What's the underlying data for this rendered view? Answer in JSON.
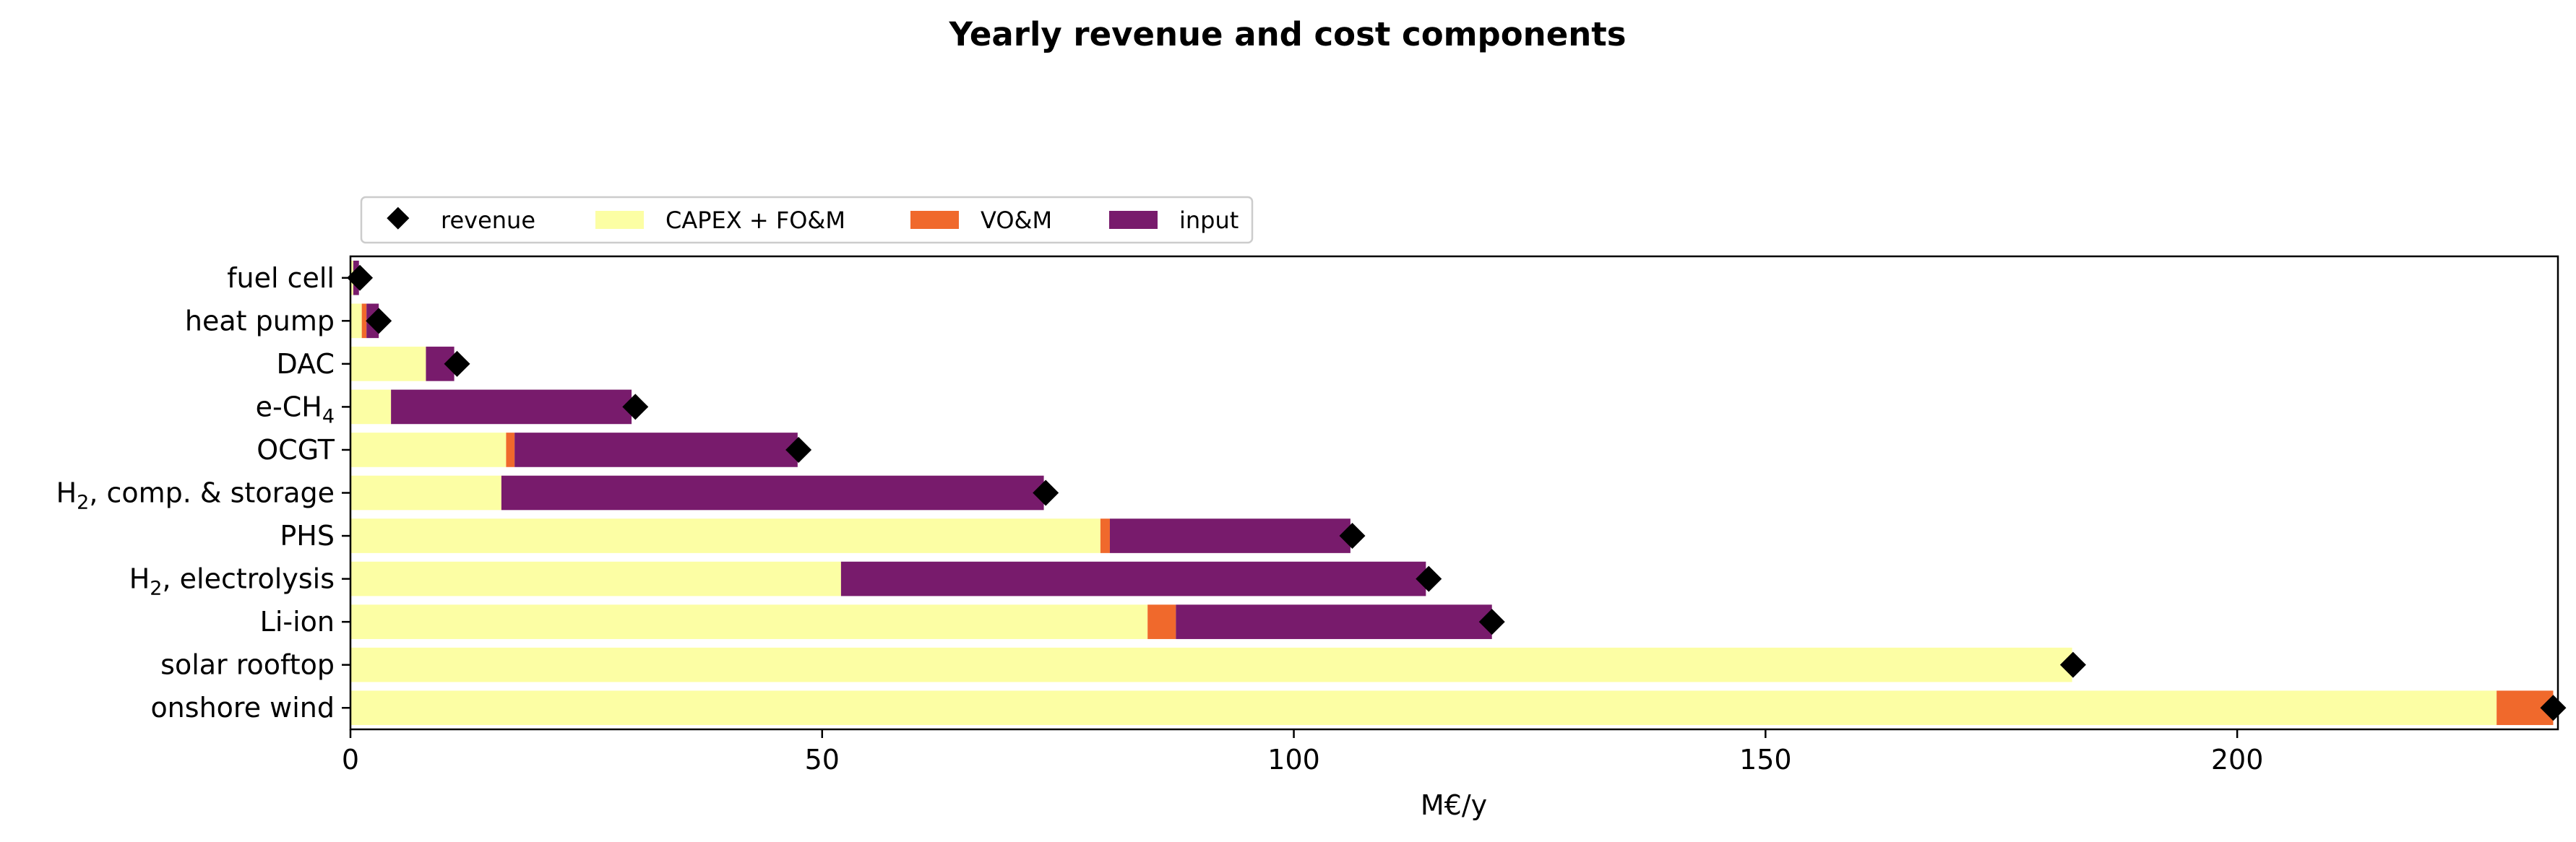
{
  "chart_data": {
    "type": "bar",
    "orientation": "horizontal",
    "stacked": true,
    "title": "Yearly revenue and cost components",
    "xlabel": "M€/y",
    "ylabel": "",
    "xlim": [
      0,
      234
    ],
    "xticks": [
      0,
      50,
      100,
      150,
      200
    ],
    "grid": false,
    "legend_position": "top-left, above axes",
    "categories": [
      {
        "label": "fuel cell"
      },
      {
        "label": "heat pump"
      },
      {
        "label": "DAC"
      },
      {
        "label": "e-CH",
        "sub": "4"
      },
      {
        "label": "OCGT"
      },
      {
        "label": "H",
        "sub": "2",
        "rest": ", comp. & storage"
      },
      {
        "label": "PHS"
      },
      {
        "label": "H",
        "sub": "2",
        "rest": ", electrolysis"
      },
      {
        "label": "Li-ion"
      },
      {
        "label": "solar rooftop"
      },
      {
        "label": "onshore wind"
      }
    ],
    "series": [
      {
        "name": "CAPEX + FO&M",
        "color": "#fcfea4",
        "values": [
          0.3,
          1.2,
          8.0,
          4.3,
          16.5,
          16.0,
          79.5,
          52.0,
          84.5,
          182.5,
          227.5
        ]
      },
      {
        "name": "VO&M",
        "color": "#f0692c",
        "values": [
          0.0,
          0.5,
          0.0,
          0.0,
          0.9,
          0.0,
          1.0,
          0.0,
          3.0,
          0.0,
          6.0
        ]
      },
      {
        "name": "input",
        "color": "#781b6c",
        "values": [
          0.6,
          1.3,
          3.0,
          25.5,
          30.0,
          57.5,
          25.5,
          62.0,
          33.5,
          0.0,
          0.0
        ]
      }
    ],
    "revenue": {
      "name": "revenue",
      "color": "#000000",
      "values": [
        1.0,
        3.0,
        11.3,
        30.2,
        47.5,
        73.7,
        106.2,
        114.3,
        121.0,
        182.6,
        233.5
      ]
    }
  }
}
